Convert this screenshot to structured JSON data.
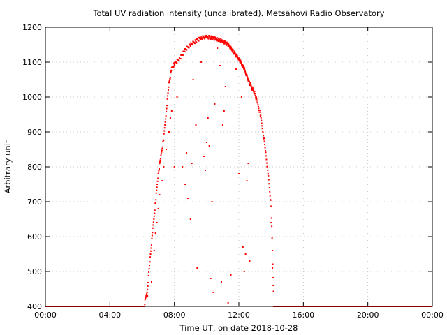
{
  "chart_data": {
    "type": "scatter",
    "title": "Total UV radiation intensity (uncalibrated). Metsähovi Radio Observatory",
    "xlabel": "Time UT, on date 2018-10-28",
    "ylabel": "Arbitrary unit",
    "xlim": [
      "00:00",
      "24:00"
    ],
    "ylim": [
      400,
      1200
    ],
    "x_ticks": [
      "00:00",
      "04:00",
      "08:00",
      "12:00",
      "16:00",
      "20:00",
      "00:00"
    ],
    "y_ticks": [
      400,
      500,
      600,
      700,
      800,
      900,
      1000,
      1100,
      1200
    ],
    "grid": true,
    "marker_color": "#ff0000",
    "baseline": {
      "x_ranges": [
        [
          "00:00",
          "06:10"
        ],
        [
          "14:10",
          "24:00"
        ]
      ],
      "y": 400
    },
    "envelope": [
      [
        "06:10",
        410
      ],
      [
        "06:20",
        450
      ],
      [
        "06:30",
        540
      ],
      [
        "06:40",
        620
      ],
      [
        "06:50",
        700
      ],
      [
        "07:00",
        780
      ],
      [
        "07:10",
        830
      ],
      [
        "07:20",
        880
      ],
      [
        "07:30",
        960
      ],
      [
        "07:40",
        1040
      ],
      [
        "07:50",
        1080
      ],
      [
        "08:00",
        1095
      ],
      [
        "08:20",
        1110
      ],
      [
        "08:40",
        1135
      ],
      [
        "09:00",
        1150
      ],
      [
        "09:20",
        1160
      ],
      [
        "09:40",
        1170
      ],
      [
        "10:00",
        1172
      ],
      [
        "10:20",
        1170
      ],
      [
        "10:40",
        1165
      ],
      [
        "11:00",
        1160
      ],
      [
        "11:20",
        1150
      ],
      [
        "11:40",
        1130
      ],
      [
        "12:00",
        1110
      ],
      [
        "12:20",
        1080
      ],
      [
        "12:40",
        1040
      ],
      [
        "13:00",
        1010
      ],
      [
        "13:10",
        980
      ],
      [
        "13:20",
        950
      ],
      [
        "13:30",
        900
      ],
      [
        "13:40",
        840
      ],
      [
        "13:50",
        770
      ],
      [
        "14:00",
        690
      ],
      [
        "14:05",
        560
      ],
      [
        "14:10",
        410
      ]
    ],
    "scattered_points": [
      [
        "06:20",
        430
      ],
      [
        "06:35",
        470
      ],
      [
        "06:45",
        560
      ],
      [
        "06:50",
        610
      ],
      [
        "06:55",
        640
      ],
      [
        "07:00",
        680
      ],
      [
        "07:05",
        720
      ],
      [
        "07:15",
        760
      ],
      [
        "07:20",
        800
      ],
      [
        "07:30",
        850
      ],
      [
        "07:40",
        900
      ],
      [
        "07:45",
        940
      ],
      [
        "07:50",
        960
      ],
      [
        "08:00",
        800
      ],
      [
        "08:10",
        1000
      ],
      [
        "08:30",
        800
      ],
      [
        "08:40",
        750
      ],
      [
        "08:45",
        840
      ],
      [
        "08:50",
        710
      ],
      [
        "09:00",
        650
      ],
      [
        "09:05",
        810
      ],
      [
        "09:10",
        1050
      ],
      [
        "09:20",
        920
      ],
      [
        "09:25",
        510
      ],
      [
        "09:40",
        1100
      ],
      [
        "09:50",
        830
      ],
      [
        "09:55",
        790
      ],
      [
        "10:00",
        870
      ],
      [
        "10:05",
        940
      ],
      [
        "10:10",
        860
      ],
      [
        "10:15",
        480
      ],
      [
        "10:20",
        700
      ],
      [
        "10:25",
        440
      ],
      [
        "10:30",
        980
      ],
      [
        "10:40",
        1140
      ],
      [
        "10:50",
        1090
      ],
      [
        "10:55",
        470
      ],
      [
        "11:00",
        920
      ],
      [
        "11:05",
        960
      ],
      [
        "11:10",
        1030
      ],
      [
        "11:20",
        410
      ],
      [
        "11:30",
        490
      ],
      [
        "11:50",
        1080
      ],
      [
        "12:00",
        780
      ],
      [
        "12:10",
        1000
      ],
      [
        "12:15",
        570
      ],
      [
        "12:20",
        500
      ],
      [
        "12:25",
        550
      ],
      [
        "12:30",
        760
      ],
      [
        "12:35",
        810
      ],
      [
        "12:40",
        530
      ],
      [
        "12:50",
        1020
      ],
      [
        "14:00",
        640
      ],
      [
        "14:05",
        510
      ],
      [
        "14:08",
        460
      ]
    ]
  }
}
